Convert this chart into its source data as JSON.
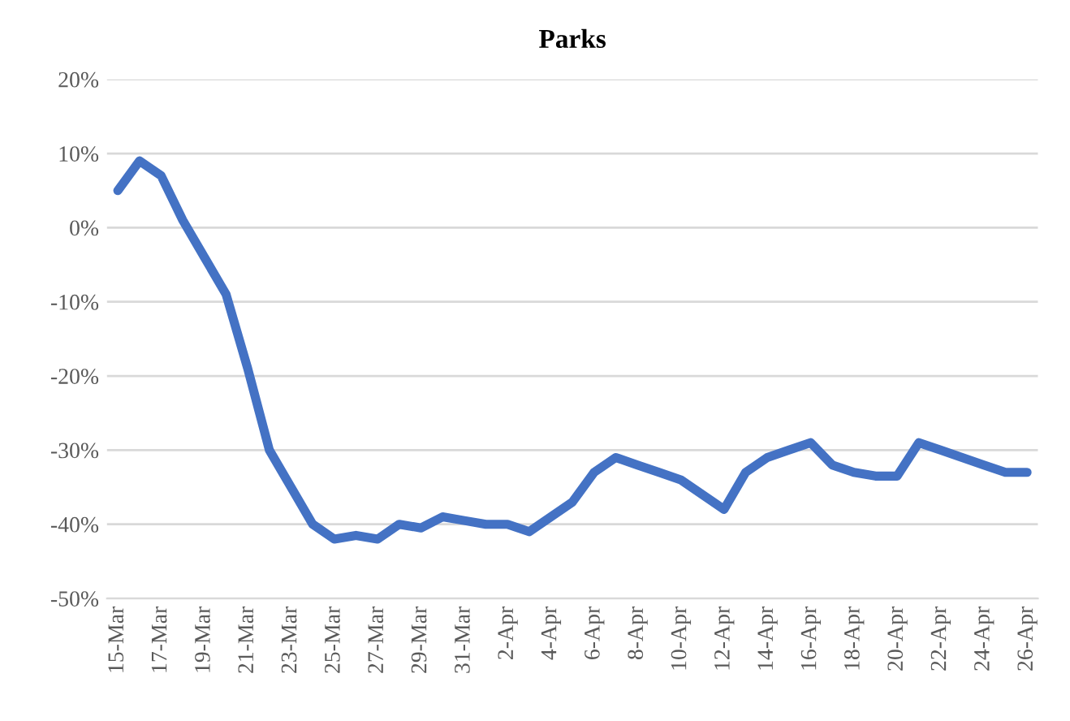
{
  "chart_data": {
    "type": "line",
    "title": "Parks",
    "categories": [
      "15-Mar",
      null,
      "17-Mar",
      null,
      "19-Mar",
      null,
      "21-Mar",
      null,
      "23-Mar",
      null,
      "25-Mar",
      null,
      "27-Mar",
      null,
      "29-Mar",
      null,
      "31-Mar",
      null,
      "2-Apr",
      null,
      "4-Apr",
      null,
      "6-Apr",
      null,
      "8-Apr",
      null,
      "10-Apr",
      null,
      "12-Apr",
      null,
      "14-Apr",
      null,
      "16-Apr",
      null,
      "18-Apr",
      null,
      "20-Apr",
      null,
      "22-Apr",
      null,
      "24-Apr",
      null,
      "26-Apr"
    ],
    "series": [
      {
        "color": "#4472c4",
        "values": [
          5,
          9,
          7,
          1,
          -4,
          -9,
          -19,
          -30,
          -35,
          -40,
          -42,
          -41.5,
          -42,
          -40,
          -40.5,
          -39,
          -39.5,
          -40,
          -40,
          -41,
          -39,
          -37,
          -33,
          -31,
          -32,
          -33,
          -34,
          -36,
          -38,
          -33,
          -31,
          -30,
          -29,
          -32,
          -33,
          -33.5,
          -33.5,
          -29,
          -30,
          -31,
          -32,
          -33,
          -33
        ]
      }
    ],
    "ylim": [
      -50,
      20
    ],
    "yticks": [
      {
        "value": -50,
        "label": "-50%"
      },
      {
        "value": -40,
        "label": "-40%"
      },
      {
        "value": -30,
        "label": "-30%"
      },
      {
        "value": -20,
        "label": "-20%"
      },
      {
        "value": -10,
        "label": "-10%"
      },
      {
        "value": 0,
        "label": "0%"
      },
      {
        "value": 10,
        "label": "10%"
      },
      {
        "value": 20,
        "label": "20%"
      }
    ],
    "grid": "y",
    "marker": "none",
    "line_style": "solid"
  }
}
